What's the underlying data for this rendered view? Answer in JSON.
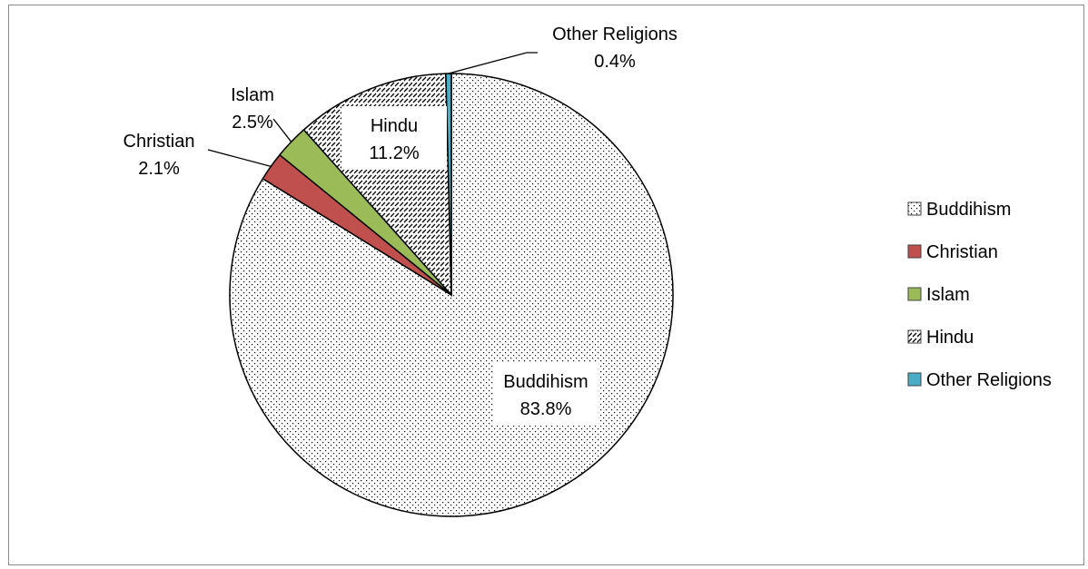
{
  "chart_data": {
    "type": "pie",
    "categories": [
      "Buddihism",
      "Christian",
      "Islam",
      "Hindu",
      "Other Religions"
    ],
    "values": [
      83.8,
      2.1,
      2.5,
      11.2,
      0.4
    ],
    "value_labels": [
      "83.8%",
      "2.1%",
      "2.5%",
      "11.2%",
      "0.4%"
    ],
    "legend_position": "right",
    "colors": {
      "Buddihism": "dotted-pattern",
      "Christian": "#c0504d",
      "Islam": "#9bbb59",
      "Hindu": "hatched-pattern",
      "Other Religions": "#4bacc6"
    }
  }
}
